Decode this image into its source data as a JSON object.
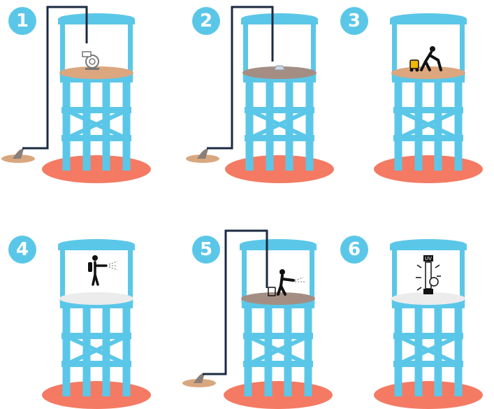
{
  "colors": {
    "tower": "#5bc7e8",
    "ground": "#f47a63",
    "hose": "#1b2a41",
    "sediment_light": "#dca67e",
    "sediment_dark": "#a48e83",
    "clean_floor": "#ececec",
    "outlet_pool": "#d9a77f",
    "icon": "#111111"
  },
  "steps": [
    {
      "number": "1",
      "floor": "sediment_light",
      "action": "pump",
      "icon": "pump-icon",
      "hose": true
    },
    {
      "number": "2",
      "floor": "sediment_dark",
      "action": "vacuum",
      "icon": "vacuum-nozzle-icon",
      "hose": true
    },
    {
      "number": "3",
      "floor": "sediment_light",
      "action": "scrub",
      "icon": "worker-scrubbing-icon",
      "hose": false
    },
    {
      "number": "4",
      "floor": "clean_floor",
      "action": "spray",
      "icon": "worker-spraying-icon",
      "hose": false
    },
    {
      "number": "5",
      "floor": "sediment_dark",
      "action": "pressure-wash",
      "icon": "worker-pressure-washing-icon",
      "hose": true
    },
    {
      "number": "6",
      "floor": "clean_floor",
      "action": "uv-disinfect",
      "icon": "uv-lamp-icon",
      "hose": false,
      "uv_label": "UV"
    }
  ]
}
